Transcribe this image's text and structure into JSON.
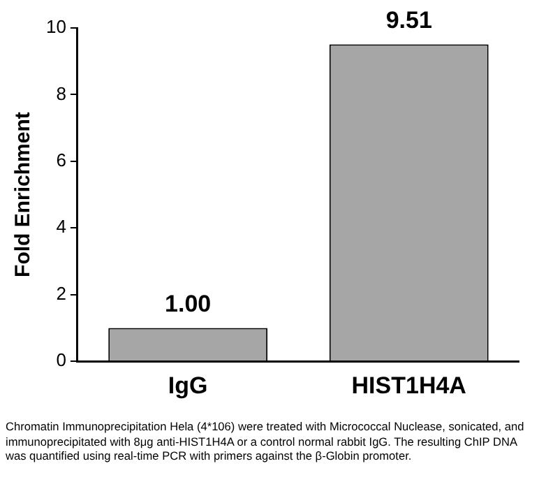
{
  "chart_data": {
    "type": "bar",
    "ylabel": "Fold Enrichment",
    "categories": [
      "IgG",
      "HIST1H4A"
    ],
    "values": [
      1.0,
      9.51
    ],
    "value_labels": [
      "1.00",
      "9.51"
    ],
    "color": "#a6a6a6",
    "ylim": [
      0,
      10
    ],
    "yticks": [
      0,
      2,
      4,
      6,
      8,
      10
    ],
    "grid": false,
    "legend": false,
    "annotations": [
      "Chromatin Immunoprecipitation Hela (4*106) were treated with Micrococcal Nuclease, sonicated, and immunoprecipitated with 8μg anti-HIST1H4A or a control normal rabbit IgG. The resulting ChIP DNA was quantified using real-time PCR with primers against the β-Globin promoter."
    ]
  }
}
